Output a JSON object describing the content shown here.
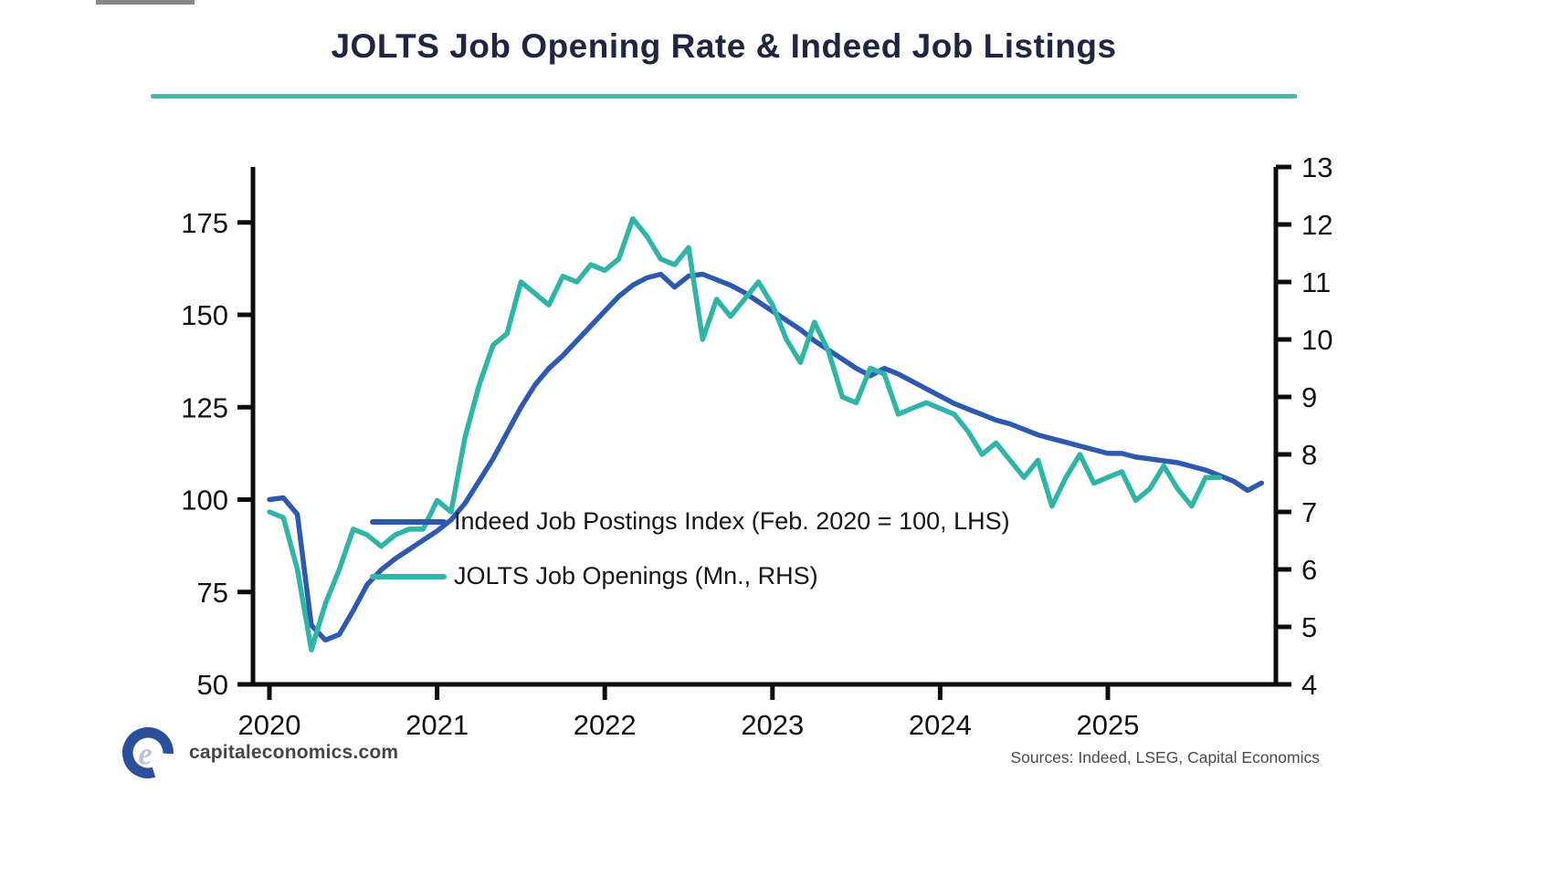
{
  "title": "JOLTS Job Opening Rate & Indeed Job Listings",
  "footer": {
    "brand": "capitaleconomics.com",
    "logo_icon": "capital-economics-logo",
    "sources": "Sources: Indeed, LSEG, Capital Economics"
  },
  "colors": {
    "indeed_blue": "#2d5ab0",
    "jolts_teal": "#2eb5a7",
    "title_rule_teal": "#4cb4a8",
    "axis_black": "#0d0d0d",
    "title_navy": "#1e2642",
    "logo_blue": "#2c4f9c",
    "logo_light": "#b7c3d9"
  },
  "chart_data": {
    "type": "line",
    "title": "JOLTS Job Opening Rate & Indeed Job Listings",
    "x_ticks": [
      "2020",
      "2021",
      "2022",
      "2023",
      "2024",
      "2025"
    ],
    "left_axis": {
      "ticks": [
        50,
        75,
        100,
        125,
        150,
        175
      ],
      "range": [
        50,
        190
      ],
      "label": "Indeed Job Postings Index (Feb. 2020 = 100)"
    },
    "right_axis": {
      "ticks": [
        4,
        5,
        6,
        7,
        8,
        9,
        10,
        11,
        12,
        13
      ],
      "range": [
        4,
        13
      ],
      "label": "JOLTS Job Openings (Mn.)"
    },
    "grid": false,
    "legend_position": "inside-lower-middle",
    "legend": [
      {
        "label": "Indeed Job Postings Index (Feb. 2020 = 100, LHS)",
        "color": "#2d5ab0"
      },
      {
        "label": "JOLTS Job Openings (Mn., RHS)",
        "color": "#2eb5a7"
      }
    ],
    "series": [
      {
        "name": "Indeed Job Postings Index (Feb. 2020 = 100, LHS)",
        "axis": "left",
        "color": "#2d5ab0",
        "start_month": "2020-01",
        "values": [
          100,
          100.5,
          96,
          66,
          62,
          63.5,
          70,
          77,
          81,
          84,
          86.5,
          89,
          91.5,
          94.5,
          99,
          105,
          111,
          118,
          125,
          131,
          135.5,
          139,
          143,
          147,
          151,
          155,
          158,
          160,
          161,
          157.5,
          160.5,
          161,
          159.5,
          158,
          156,
          153.5,
          151,
          148.5,
          146,
          143,
          140.5,
          138,
          135.5,
          133.5,
          135.5,
          134,
          132,
          130,
          128,
          126,
          124.5,
          123,
          121.5,
          120.5,
          119,
          117.5,
          116.5,
          115.5,
          114.5,
          113.5,
          112.5,
          112.5,
          111.5,
          111,
          110.5,
          110,
          109,
          108,
          106.5,
          105,
          102.5,
          104.5
        ]
      },
      {
        "name": "JOLTS Job Openings (Mn., RHS)",
        "axis": "right",
        "color": "#2eb5a7",
        "start_month": "2020-01",
        "values": [
          7.0,
          6.9,
          6.0,
          4.6,
          5.4,
          6.0,
          6.7,
          6.6,
          6.4,
          6.6,
          6.7,
          6.7,
          7.2,
          7.0,
          8.3,
          9.2,
          9.9,
          10.1,
          11.0,
          10.8,
          10.6,
          11.1,
          11.0,
          11.3,
          11.2,
          11.4,
          12.1,
          11.8,
          11.4,
          11.3,
          11.6,
          10.0,
          10.7,
          10.4,
          10.7,
          11.0,
          10.6,
          10.0,
          9.6,
          10.3,
          9.8,
          9.0,
          8.9,
          9.5,
          9.4,
          8.7,
          8.8,
          8.9,
          8.8,
          8.7,
          8.4,
          8.0,
          8.2,
          7.9,
          7.6,
          7.9,
          7.1,
          7.6,
          8.0,
          7.5,
          7.6,
          7.7,
          7.2,
          7.4,
          7.8,
          7.4,
          7.1,
          7.6,
          7.6
        ]
      }
    ]
  }
}
